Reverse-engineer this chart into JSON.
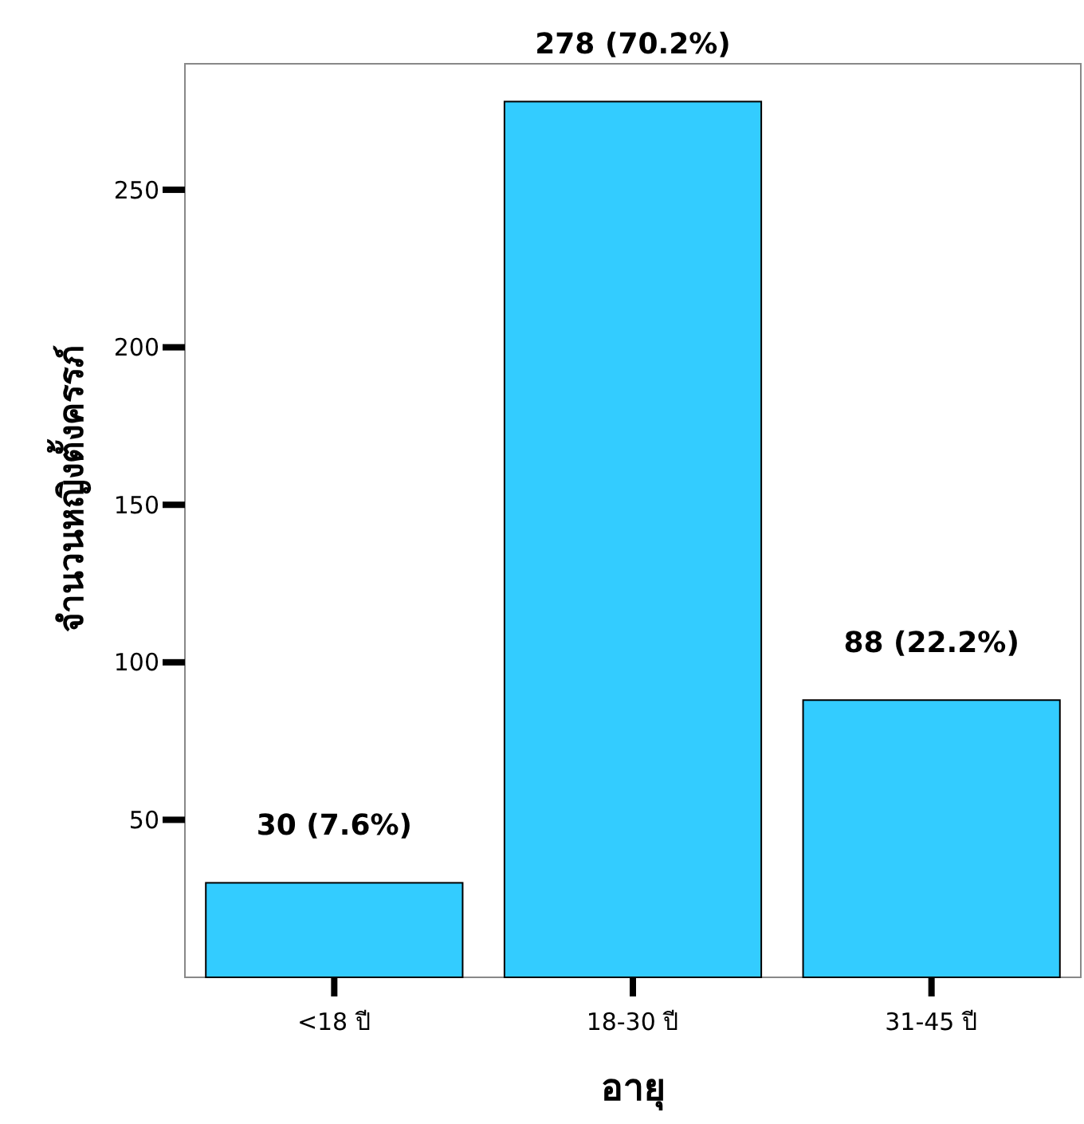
{
  "chart_data": {
    "type": "bar",
    "xlabel": "อายุ",
    "ylabel": "จำนวนหญิงตั้งครรภ์",
    "categories": [
      "<18 ปี",
      "18-30 ปี",
      "31-45 ปี"
    ],
    "values": [
      30,
      278,
      88
    ],
    "value_labels": [
      "30 (7.6%)",
      "278 (70.2%)",
      "88 (22.2%)"
    ],
    "color": "#33ccff",
    "ylim": [
      0,
      290
    ],
    "yticks": [
      50,
      100,
      150,
      200,
      250
    ],
    "grid": false
  }
}
